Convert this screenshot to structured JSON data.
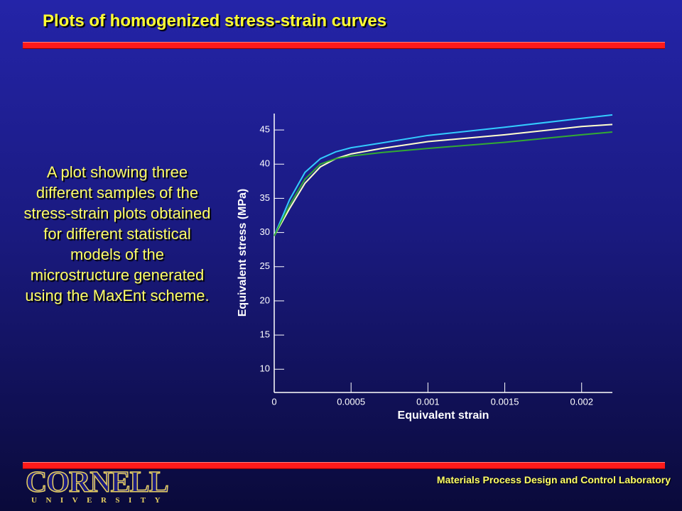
{
  "slide": {
    "title": "Plots of homogenized stress-strain curves",
    "description": "A plot showing three different samples of the stress-strain plots obtained for different statistical models of the microstructure generated using the MaxEnt scheme.",
    "footer": "Materials Process Design and Control Laboratory",
    "logo": "CORNELL",
    "logo_sub": "UNIVERSITY"
  },
  "chart_data": {
    "type": "line",
    "x_label": "Equivalent strain",
    "y_label": "Equivalent stress (MPa)",
    "x": [
      0,
      0.0001,
      0.0002,
      0.0003,
      0.0004,
      0.0005,
      0.0007,
      0.001,
      0.0015,
      0.002,
      0.0022
    ],
    "series": [
      {
        "color": "#33ccff",
        "values": [
          29.5,
          34.8,
          38.8,
          40.8,
          41.8,
          42.4,
          43.1,
          44.2,
          45.4,
          46.7,
          47.2
        ]
      },
      {
        "color": "#ffffcc",
        "values": [
          29.5,
          33.5,
          37.2,
          39.6,
          40.8,
          41.5,
          42.3,
          43.3,
          44.3,
          45.5,
          45.8
        ]
      },
      {
        "color": "#33aa33",
        "values": [
          29.5,
          34.0,
          37.8,
          40.0,
          40.8,
          41.2,
          41.7,
          42.3,
          43.2,
          44.3,
          44.7
        ]
      }
    ],
    "xlim": [
      0,
      0.0022
    ],
    "xticks": [
      0,
      0.0005,
      0.001,
      0.0015,
      0.002
    ],
    "ylim": [
      6.6,
      47.4
    ],
    "yticks": [
      10,
      15,
      20,
      25,
      30,
      35,
      40,
      45
    ]
  }
}
